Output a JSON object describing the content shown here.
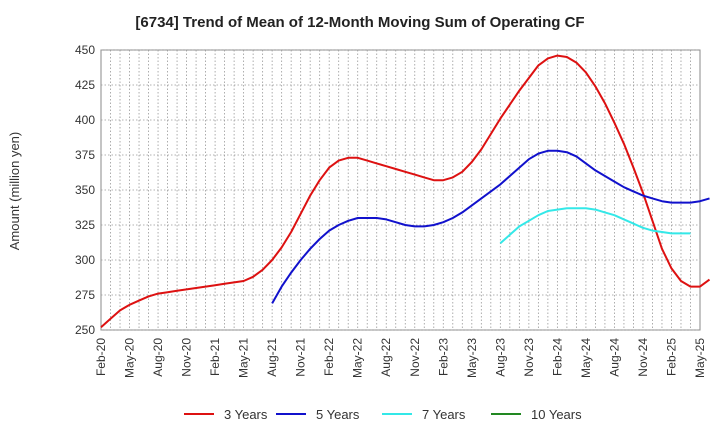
{
  "chart_data": {
    "type": "line",
    "title": "[6734]  Trend of Mean of 12-Month Moving Sum of Operating CF",
    "xlabel": "",
    "ylabel": "Amount (million yen)",
    "ylim": [
      250,
      450
    ],
    "yticks": [
      250,
      275,
      300,
      325,
      350,
      375,
      400,
      425,
      450
    ],
    "x_tick_labels": [
      "Feb-20",
      "May-20",
      "Aug-20",
      "Nov-20",
      "Feb-21",
      "May-21",
      "Aug-21",
      "Nov-21",
      "Feb-22",
      "May-22",
      "Aug-22",
      "Nov-22",
      "Feb-23",
      "May-23",
      "Aug-23",
      "Nov-23",
      "Feb-24",
      "May-24",
      "Aug-24",
      "Nov-24",
      "Feb-25",
      "May-25"
    ],
    "x_start": "Feb-20",
    "grid": true,
    "legend_position": "bottom",
    "series": [
      {
        "name": "3 Years",
        "color": "#dd1111",
        "start_month_index": 0,
        "values": [
          252,
          258,
          264,
          268,
          271,
          274,
          276,
          277,
          278,
          279,
          280,
          281,
          282,
          283,
          284,
          285,
          288,
          293,
          300,
          309,
          320,
          333,
          346,
          357,
          366,
          371,
          373,
          373,
          371,
          369,
          367,
          365,
          363,
          361,
          359,
          357,
          357,
          359,
          363,
          370,
          379,
          390,
          401,
          411,
          421,
          430,
          439,
          444,
          446,
          445,
          441,
          434,
          424,
          412,
          398,
          383,
          366,
          348,
          328,
          308,
          294,
          285,
          281,
          281,
          286
        ]
      },
      {
        "name": "5 Years",
        "color": "#1111cc",
        "start_month_index": 18,
        "values": [
          269,
          281,
          291,
          300,
          308,
          315,
          321,
          325,
          328,
          330,
          330,
          330,
          329,
          327,
          325,
          324,
          324,
          325,
          327,
          330,
          334,
          339,
          344,
          349,
          354,
          360,
          366,
          372,
          376,
          378,
          378,
          377,
          374,
          369,
          364,
          360,
          356,
          352,
          349,
          346,
          344,
          342,
          341,
          341,
          341,
          342,
          344
        ]
      },
      {
        "name": "7 Years",
        "color": "#33e8e8",
        "start_month_index": 42,
        "values": [
          312,
          318,
          324,
          328,
          332,
          335,
          336,
          337,
          337,
          337,
          336,
          334,
          332,
          329,
          326,
          323,
          321,
          320,
          319,
          319,
          319
        ]
      },
      {
        "name": "10 Years",
        "color": "#228822",
        "start_month_index": 0,
        "values": []
      }
    ]
  }
}
